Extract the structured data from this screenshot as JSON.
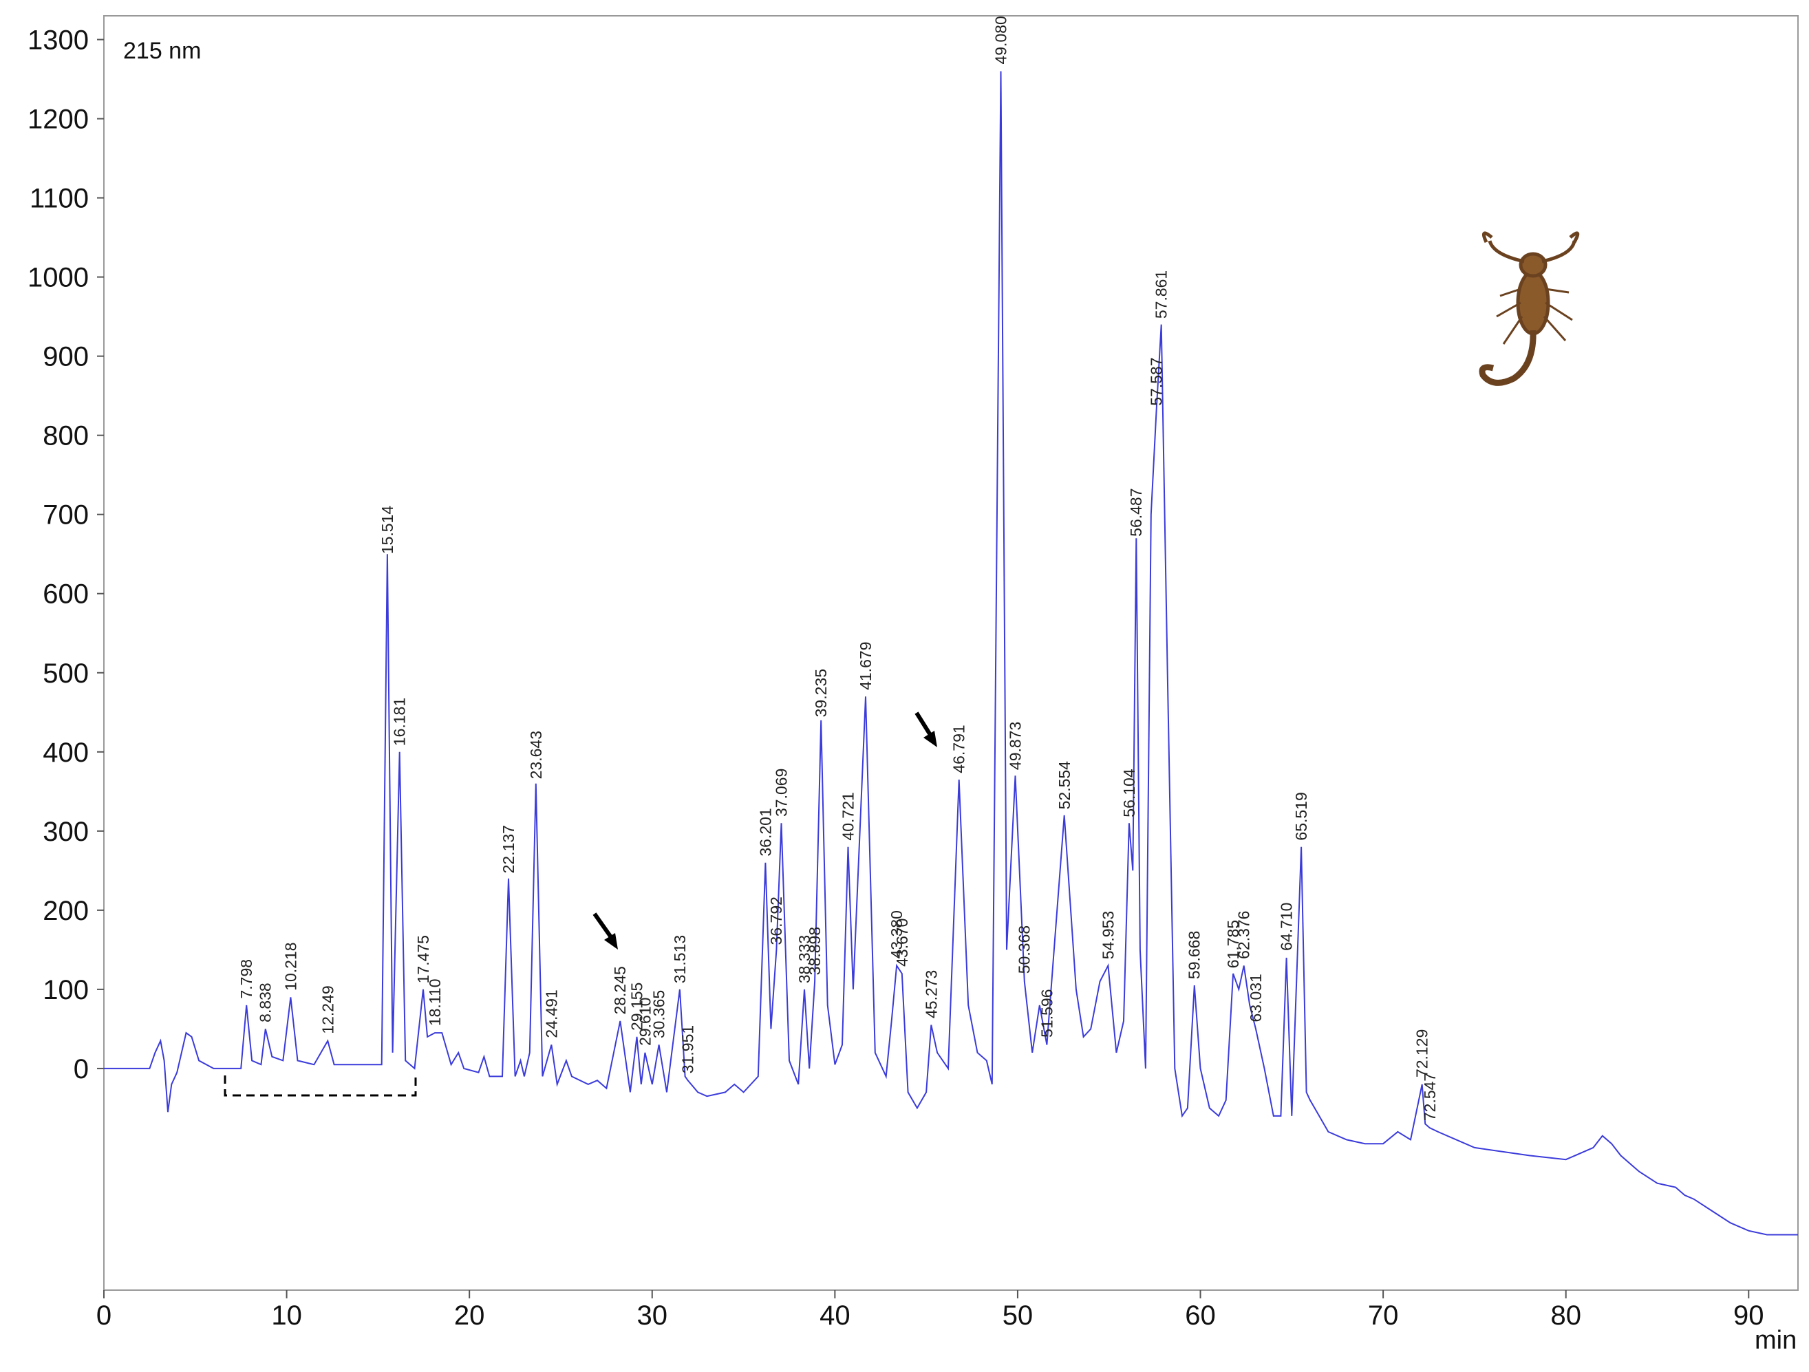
{
  "chart_data": {
    "type": "line",
    "annotation": "215 nm",
    "x_label": "min",
    "xlim": [
      0,
      92.7
    ],
    "xticks": [
      0,
      10,
      20,
      30,
      40,
      50,
      60,
      70,
      80,
      90
    ],
    "ylim": [
      -280,
      1330
    ],
    "yticks": [
      0,
      100,
      200,
      300,
      400,
      500,
      600,
      700,
      800,
      900,
      1000,
      1100,
      1200,
      1300
    ],
    "x": [
      0,
      2.5,
      2.8,
      3.1,
      3.3,
      3.5,
      3.7,
      4.0,
      4.5,
      4.8,
      5.2,
      6,
      7.5,
      7.8,
      8.1,
      8.6,
      8.84,
      9.2,
      9.8,
      10.22,
      10.6,
      11.5,
      12.25,
      12.6,
      14,
      15.2,
      15.51,
      15.8,
      16.18,
      16.5,
      17.0,
      17.47,
      17.7,
      18.11,
      18.5,
      19,
      19.4,
      19.7,
      20.5,
      20.8,
      21.1,
      21.8,
      22.14,
      22.5,
      22.8,
      23.0,
      23.3,
      23.64,
      24.0,
      24.49,
      24.8,
      25.3,
      25.6,
      26.5,
      27,
      27.5,
      28.25,
      28.8,
      29.16,
      29.4,
      29.61,
      30.0,
      30.37,
      30.8,
      31.51,
      31.8,
      31.95,
      32.5,
      33,
      34,
      34.5,
      35,
      35.8,
      36.2,
      36.5,
      36.8,
      37.07,
      37.5,
      38.0,
      38.33,
      38.6,
      38.9,
      39.24,
      39.6,
      40.0,
      40.4,
      40.72,
      41.0,
      41.68,
      42.2,
      42.8,
      43.1,
      43.38,
      43.67,
      44.0,
      44.5,
      45.0,
      45.27,
      45.6,
      46.2,
      46.79,
      47.3,
      47.8,
      48.3,
      48.6,
      49.08,
      49.4,
      49.87,
      50.37,
      50.8,
      51.2,
      51.6,
      52.55,
      53.2,
      53.6,
      54.0,
      54.5,
      54.95,
      55.4,
      55.8,
      56.1,
      56.3,
      56.49,
      56.7,
      57.0,
      57.3,
      57.59,
      57.86,
      58.2,
      58.6,
      59.0,
      59.3,
      59.67,
      60.0,
      60.5,
      61.0,
      61.4,
      61.79,
      62.1,
      62.38,
      62.7,
      63.03,
      63.5,
      64.0,
      64.4,
      64.71,
      65.0,
      65.52,
      65.8,
      66.0,
      66.5,
      67,
      68,
      69,
      70,
      70.8,
      71.5,
      72.13,
      72.3,
      72.55,
      73,
      75,
      78,
      80,
      81.5,
      82,
      82.5,
      83,
      84,
      85,
      86,
      86.5,
      87,
      88,
      89,
      90,
      91,
      92.7
    ],
    "series": [
      {
        "color": "#3b3bdb",
        "values": [
          0,
          0,
          20,
          35,
          10,
          -55,
          -20,
          -5,
          45,
          40,
          10,
          0,
          0,
          80,
          10,
          5,
          50,
          15,
          10,
          90,
          10,
          5,
          35,
          5,
          5,
          5,
          650,
          20,
          400,
          10,
          0,
          100,
          40,
          45,
          45,
          5,
          20,
          0,
          -5,
          15,
          -10,
          -10,
          240,
          -10,
          10,
          -10,
          20,
          360,
          -10,
          30,
          -20,
          10,
          -10,
          -20,
          -15,
          -25,
          60,
          -30,
          40,
          -20,
          20,
          -20,
          30,
          -30,
          100,
          -10,
          -15,
          -30,
          -35,
          -30,
          -20,
          -30,
          -10,
          260,
          50,
          150,
          310,
          10,
          -20,
          100,
          0,
          110,
          440,
          80,
          5,
          30,
          280,
          100,
          470,
          20,
          -10,
          60,
          130,
          120,
          -30,
          -50,
          -30,
          55,
          20,
          0,
          365,
          80,
          20,
          10,
          -20,
          1260,
          150,
          370,
          110,
          20,
          80,
          30,
          320,
          100,
          40,
          50,
          110,
          130,
          20,
          60,
          310,
          250,
          670,
          150,
          0,
          700,
          830,
          940,
          500,
          0,
          -60,
          -50,
          105,
          0,
          -50,
          -60,
          -40,
          120,
          100,
          130,
          80,
          50,
          0,
          -60,
          -60,
          140,
          -60,
          280,
          -30,
          -40,
          -60,
          -80,
          -90,
          -95,
          -95,
          -80,
          -90,
          -20,
          -70,
          -75,
          -80,
          -100,
          -110,
          -115,
          -100,
          -85,
          -95,
          -110,
          -130,
          -145,
          -150,
          -160,
          -165,
          -180,
          -195,
          -205,
          -210,
          -210
        ]
      }
    ],
    "peak_labels": [
      {
        "value": 7.798,
        "label": "7.798"
      },
      {
        "value": 8.838,
        "label": "8.838"
      },
      {
        "value": 10.218,
        "label": "10.218"
      },
      {
        "value": 12.249,
        "label": "12.249"
      },
      {
        "value": 15.514,
        "label": "15.514"
      },
      {
        "value": 16.181,
        "label": "16.181"
      },
      {
        "value": 17.475,
        "label": "17.475"
      },
      {
        "value": 18.11,
        "label": "18.110"
      },
      {
        "value": 22.137,
        "label": "22.137"
      },
      {
        "value": 23.643,
        "label": "23.643"
      },
      {
        "value": 24.491,
        "label": "24.491"
      },
      {
        "value": 28.245,
        "label": "28.245"
      },
      {
        "value": 29.155,
        "label": "29.155"
      },
      {
        "value": 29.61,
        "label": "29.610"
      },
      {
        "value": 30.365,
        "label": "30.365"
      },
      {
        "value": 31.513,
        "label": "31.513"
      },
      {
        "value": 31.951,
        "label": "31.951"
      },
      {
        "value": 36.201,
        "label": "36.201"
      },
      {
        "value": 36.792,
        "label": "36.792"
      },
      {
        "value": 37.069,
        "label": "37.069"
      },
      {
        "value": 38.333,
        "label": "38.333"
      },
      {
        "value": 38.898,
        "label": "38.898"
      },
      {
        "value": 39.235,
        "label": "39.235"
      },
      {
        "value": 40.721,
        "label": "40.721"
      },
      {
        "value": 41.679,
        "label": "41.679"
      },
      {
        "value": 43.38,
        "label": "43.380"
      },
      {
        "value": 43.67,
        "label": "43.670"
      },
      {
        "value": 45.273,
        "label": "45.273"
      },
      {
        "value": 46.791,
        "label": "46.791"
      },
      {
        "value": 49.08,
        "label": "49.080"
      },
      {
        "value": 49.873,
        "label": "49.873"
      },
      {
        "value": 50.368,
        "label": "50.368"
      },
      {
        "value": 51.596,
        "label": "51.596"
      },
      {
        "value": 52.554,
        "label": "52.554"
      },
      {
        "value": 54.953,
        "label": "54.953"
      },
      {
        "value": 56.104,
        "label": "56.104"
      },
      {
        "value": 56.487,
        "label": "56.487"
      },
      {
        "value": 57.587,
        "label": "57.587"
      },
      {
        "value": 57.861,
        "label": "57.861"
      },
      {
        "value": 59.668,
        "label": "59.668"
      },
      {
        "value": 61.785,
        "label": "61.785"
      },
      {
        "value": 62.376,
        "label": "62.376"
      },
      {
        "value": 63.031,
        "label": "63.031"
      },
      {
        "value": 64.71,
        "label": "64.710"
      },
      {
        "value": 65.519,
        "label": "65.519"
      },
      {
        "value": 72.129,
        "label": "72.129"
      },
      {
        "value": 72.547,
        "label": "72.547"
      }
    ]
  }
}
